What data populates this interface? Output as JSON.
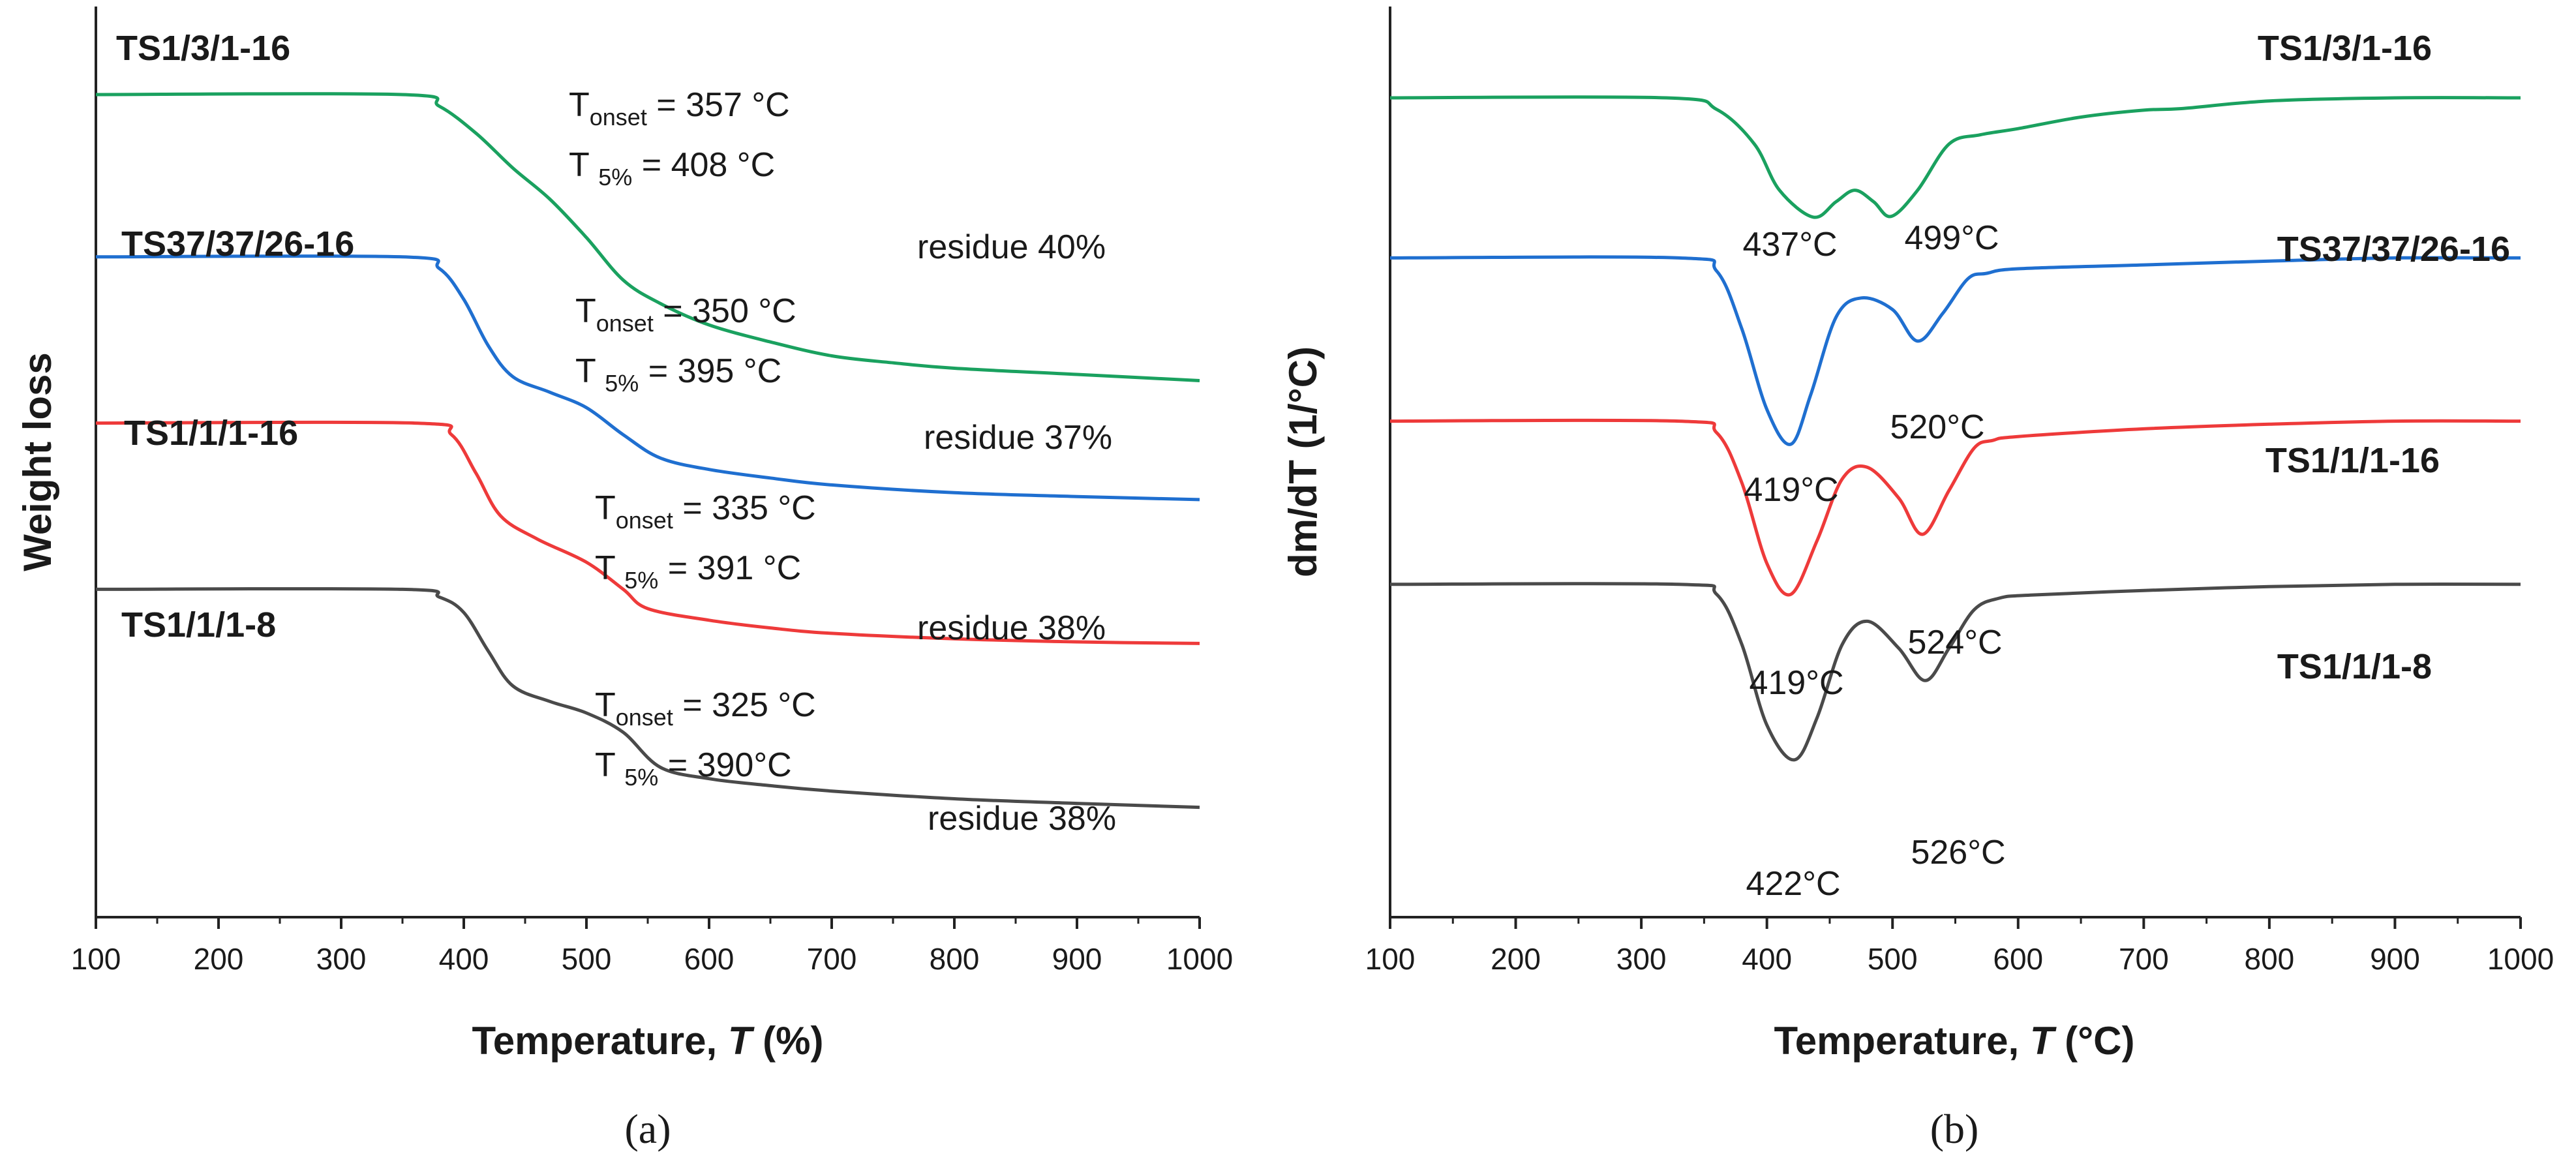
{
  "chart_data": [
    {
      "type": "line",
      "panel_label": "(a)",
      "xlabel": "Temperature, ",
      "xlabel_var": "T",
      "xlabel_unit": " (%)",
      "ylabel": "Weight loss",
      "xlim": [
        100,
        1000
      ],
      "xticks": [
        100,
        200,
        300,
        400,
        500,
        600,
        700,
        800,
        900,
        1000
      ],
      "y_ticks_shown": false,
      "series": [
        {
          "name": "TS1/3/1-16",
          "color": "#1aa15f",
          "x": [
            100,
            350,
            380,
            410,
            440,
            470,
            500,
            530,
            560,
            600,
            650,
            700,
            750,
            800,
            900,
            1000
          ],
          "y": [
            100,
            100,
            98.5,
            95,
            90.5,
            86.5,
            81.5,
            76,
            73,
            70.2,
            68,
            66.2,
            65.3,
            64.6,
            63.8,
            63
          ],
          "onset_label": "T",
          "onset_sub": "onset",
          "onset_value": " = 357 °C",
          "t5_label": "T ",
          "t5_sub": "5%",
          "t5_value": " = 408 °C",
          "residue": "residue 40%"
        },
        {
          "name": "TS37/37/26-16",
          "color": "#1f6fd0",
          "x": [
            100,
            350,
            380,
            400,
            420,
            440,
            470,
            500,
            530,
            560,
            600,
            650,
            700,
            800,
            900,
            1000
          ],
          "y": [
            79,
            79,
            77.5,
            73.5,
            67.5,
            63.5,
            61.5,
            59.5,
            56,
            53,
            51.5,
            50.4,
            49.5,
            48.5,
            48,
            47.6
          ],
          "onset_label": "T",
          "onset_sub": "onset",
          "onset_value": " = 350 °C",
          "t5_label": "T ",
          "t5_sub": "5%",
          "t5_value": " = 395 °C",
          "residue": "residue 37%"
        },
        {
          "name": "TS1/1/1-16",
          "color": "#ee3a3a",
          "x": [
            100,
            360,
            390,
            410,
            430,
            460,
            500,
            530,
            550,
            600,
            650,
            700,
            800,
            900,
            1000
          ],
          "y": [
            57.5,
            57.5,
            56,
            51,
            45.5,
            42.5,
            39.5,
            36,
            33.5,
            32,
            31,
            30.3,
            29.6,
            29.2,
            29
          ],
          "onset_label": "T",
          "onset_sub": "onset",
          "onset_value": " = 335 °C",
          "t5_label": "T ",
          "t5_sub": "5%",
          "t5_value": " = 391 °C",
          "residue": "residue 38%"
        },
        {
          "name": "TS1/1/1-8",
          "color": "#4a4a4a",
          "x": [
            100,
            350,
            380,
            400,
            420,
            440,
            470,
            500,
            530,
            560,
            600,
            650,
            700,
            800,
            900,
            1000
          ],
          "y": [
            36,
            36,
            35,
            33,
            28,
            23.5,
            21.5,
            20,
            17.5,
            13,
            11.5,
            10.6,
            9.9,
            8.9,
            8.3,
            7.8
          ],
          "onset_label": "T",
          "onset_sub": "onset",
          "onset_value": " = 325 °C",
          "t5_label": "T ",
          "t5_sub": "5%",
          "t5_value": " = 390°C",
          "residue": "residue 38%"
        }
      ]
    },
    {
      "type": "line",
      "panel_label": "(b)",
      "xlabel": "Temperature, ",
      "xlabel_var": "T",
      "xlabel_unit": " (°C)",
      "ylabel": "dm/dT (1/°C)",
      "xlim": [
        100,
        1000
      ],
      "xticks": [
        100,
        200,
        300,
        400,
        500,
        600,
        700,
        800,
        900,
        1000
      ],
      "y_ticks_shown": false,
      "series": [
        {
          "name": "TS1/3/1-16",
          "color": "#1aa15f",
          "x": [
            100,
            320,
            360,
            390,
            410,
            437,
            455,
            470,
            485,
            499,
            520,
            545,
            570,
            600,
            650,
            700,
            730,
            800,
            900,
            1000
          ],
          "y": [
            100,
            100,
            98.5,
            94,
            88,
            84.5,
            86.5,
            88,
            86.5,
            84.6,
            88,
            94,
            95.2,
            96,
            97.5,
            98.4,
            98.6,
            99.6,
            100,
            100
          ],
          "peaks": [
            "437°C",
            "499°C"
          ]
        },
        {
          "name": "TS37/37/26-16",
          "color": "#1f6fd0",
          "x": [
            100,
            330,
            360,
            380,
            400,
            419,
            435,
            455,
            475,
            500,
            520,
            540,
            560,
            575,
            600,
            700,
            800,
            900,
            1000
          ],
          "y": [
            79.2,
            79.2,
            77.5,
            70,
            59.5,
            55,
            61.5,
            71.5,
            74,
            72.5,
            68.4,
            72,
            76.5,
            77.2,
            77.8,
            78.3,
            78.8,
            79.2,
            79.2
          ],
          "peaks": [
            "419°C",
            "520°C"
          ]
        },
        {
          "name": "TS1/1/1-16",
          "color": "#ee3a3a",
          "x": [
            100,
            330,
            360,
            380,
            400,
            419,
            440,
            460,
            480,
            505,
            524,
            545,
            565,
            580,
            600,
            700,
            800,
            900,
            1000
          ],
          "y": [
            58,
            58,
            56.5,
            50,
            39.5,
            35.5,
            42.5,
            50.5,
            52,
            48,
            43.3,
            49,
            54.5,
            55.5,
            56,
            57,
            57.6,
            58,
            58
          ],
          "peaks": [
            "419°C",
            "524°C"
          ]
        },
        {
          "name": "TS1/1/1-8",
          "color": "#4a4a4a",
          "x": [
            100,
            330,
            360,
            380,
            400,
            422,
            440,
            460,
            480,
            505,
            526,
            545,
            565,
            585,
            610,
            700,
            800,
            900,
            1000
          ],
          "y": [
            36.8,
            36.8,
            35.5,
            29,
            18.5,
            14,
            19.5,
            29,
            32,
            28.5,
            24.3,
            28.5,
            33.5,
            35,
            35.4,
            36,
            36.5,
            36.8,
            36.8
          ],
          "peaks": [
            "422°C",
            "526°C"
          ]
        }
      ]
    }
  ]
}
